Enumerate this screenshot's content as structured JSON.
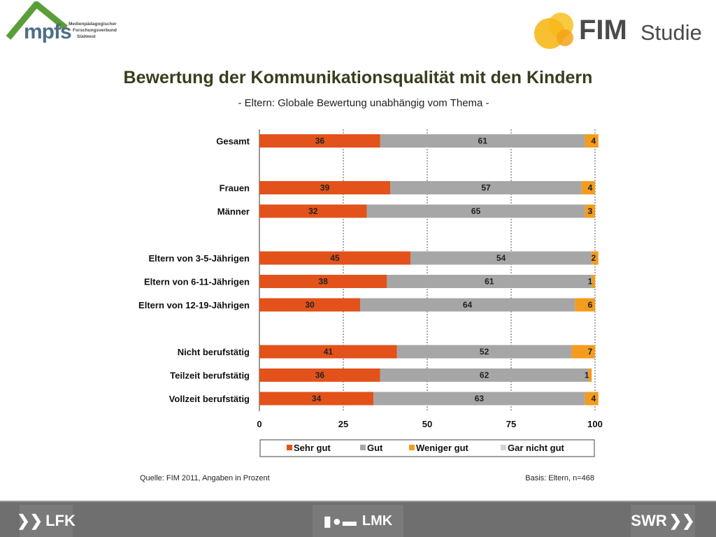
{
  "header": {
    "mpfs_logo": "mpfs",
    "mpfs_lines": [
      "Medienpädagogischer",
      "Forschungsverbund",
      "Südwest"
    ],
    "fim_logo": "FIM",
    "fim_studie": "Studie"
  },
  "title": "Bewertung der Kommunikationsqualität mit den Kindern",
  "subtitle": "- Eltern: Globale Bewertung unabhängig vom Thema -",
  "chart_data": {
    "type": "bar",
    "orientation": "horizontal",
    "stacked": true,
    "categories": [
      "Gesamt",
      "",
      "Frauen",
      "Männer",
      "",
      "Eltern von 3-5-Jährigen",
      "Eltern von 6-11-Jährigen",
      "Eltern von 12-19-Jährigen",
      "",
      "Nicht berufstätig",
      "Teilzeit berufstätig",
      "Vollzeit berufstätig"
    ],
    "series": [
      {
        "name": "Sehr gut",
        "color": "#e2521a",
        "values": [
          36,
          null,
          39,
          32,
          null,
          45,
          38,
          30,
          null,
          41,
          36,
          34
        ]
      },
      {
        "name": "Gut",
        "color": "#a6a6a6",
        "values": [
          61,
          null,
          57,
          65,
          null,
          54,
          61,
          64,
          null,
          52,
          62,
          63
        ]
      },
      {
        "name": "Weniger gut",
        "color": "#f39c1e",
        "values": [
          4,
          null,
          4,
          3,
          null,
          2,
          1,
          6,
          null,
          7,
          1,
          4
        ]
      },
      {
        "name": "Gar nicht  gut",
        "color": "#d3d3d3",
        "values": [
          0,
          null,
          0,
          0,
          null,
          0,
          0,
          0,
          null,
          0,
          0,
          0
        ]
      }
    ],
    "xlim": [
      0,
      100
    ],
    "xticks": [
      "0",
      "25",
      "50",
      "75",
      "100"
    ],
    "grid": "vertical dashed",
    "legend_position": "bottom"
  },
  "source": "Quelle: FIM 2011,  Angaben in Prozent",
  "basis": "Basis: Eltern, n=468",
  "footer": {
    "lfk": "LFK",
    "lmk": "LMK",
    "swr": "SWR"
  },
  "colors": {
    "title": "#3c3c1f",
    "mpfs_green": "#5a9e3a",
    "mpfs_blue": "#4c6e86",
    "fim_yellow": "#f6b81c",
    "footer_gray": "#6f6f6f"
  }
}
